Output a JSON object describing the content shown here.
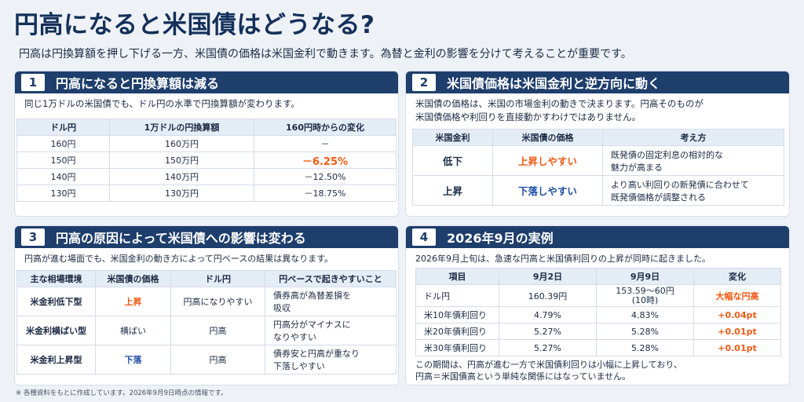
{
  "title": "円高になると米国債はどうなる?",
  "subtitle": "円高は円換算額を押し下げる一方、米国債の価格は米国金利で動きます。為替と金利の影響を分けて考えることが重要です。",
  "panel1": {
    "num": "1",
    "title": "円高になると円換算額は減る",
    "text": "同じ1万ドルの米国債でも、ドル円の水準で円換算額が変わります。",
    "headers": [
      "ドル円",
      "1万ドルの円換算額",
      "160円時からの変化"
    ],
    "rows": [
      [
        "160円",
        "160万円",
        "－"
      ],
      [
        "150円",
        "150万円",
        "－6.25%"
      ],
      [
        "140円",
        "140万円",
        "－12.50%"
      ],
      [
        "130円",
        "130万円",
        "－18.75%"
      ]
    ]
  },
  "panel2": {
    "num": "2",
    "title": "米国債価格は米国金利と逆方向に動く",
    "text1": "米国債の価格は、米国の市場金利の動きで決まります。円高そのものが",
    "text2": "米国債価格や利回りを直接動かすわけではありません。",
    "headers": [
      "米国金利",
      "米国債の価格",
      "考え方"
    ],
    "rows": [
      [
        "低下",
        "上昇しやすい",
        "既発債の固定利息の相対的な",
        "魅力が高まる"
      ],
      [
        "上昇",
        "下落しやすい",
        "より高い利回りの新発債に合わせて",
        "既発債価格が調整される"
      ]
    ]
  },
  "panel3": {
    "num": "3",
    "title": "円高の原因によって米国債への影響は変わる",
    "text": "円高が進む場面でも、米国金利の動き方によって円ベースの結果は異なります。",
    "headers": [
      "主な相場環境",
      "米国債の価格",
      "ドル円",
      "円ベースで起きやすいこと"
    ],
    "rows": [
      [
        "米金利低下型",
        "上昇",
        "円高になりやすい",
        "債券高が為替差損を",
        "吸収"
      ],
      [
        "米金利横ばい型",
        "横ばい",
        "円高",
        "円高分がマイナスに",
        "なりやすい"
      ],
      [
        "米金利上昇型",
        "下落",
        "円高",
        "債券安と円高が重なり",
        "下落しやすい"
      ]
    ]
  },
  "panel4": {
    "num": "4",
    "title": "2026年9月の実例",
    "text": "2026年9月上旬は、急速な円高と米国債利回りの上昇が同時に起きました。",
    "headers": [
      "項目",
      "9月2日",
      "9月9日",
      "変化"
    ],
    "rows": [
      [
        "ドル円",
        "160.39円",
        "153.59〜60円",
        "(10時)",
        "大幅な円高"
      ],
      [
        "米10年債利回り",
        "4.79%",
        "4.83%",
        "",
        "+0.04pt"
      ],
      [
        "米20年債利回り",
        "5.27%",
        "5.28%",
        "",
        "+0.01pt"
      ],
      [
        "米30年債利回り",
        "5.27%",
        "5.28%",
        "",
        "+0.01pt"
      ]
    ],
    "note1": "この期間は、円高が進む一方で米国債利回りは小幅に上昇しており、",
    "note2": "円高＝米国債高という単純な関係にはなっていません。"
  },
  "footnote": "※ 各種資料をもとに作成しています。2026年9月9日時点の情報です。"
}
